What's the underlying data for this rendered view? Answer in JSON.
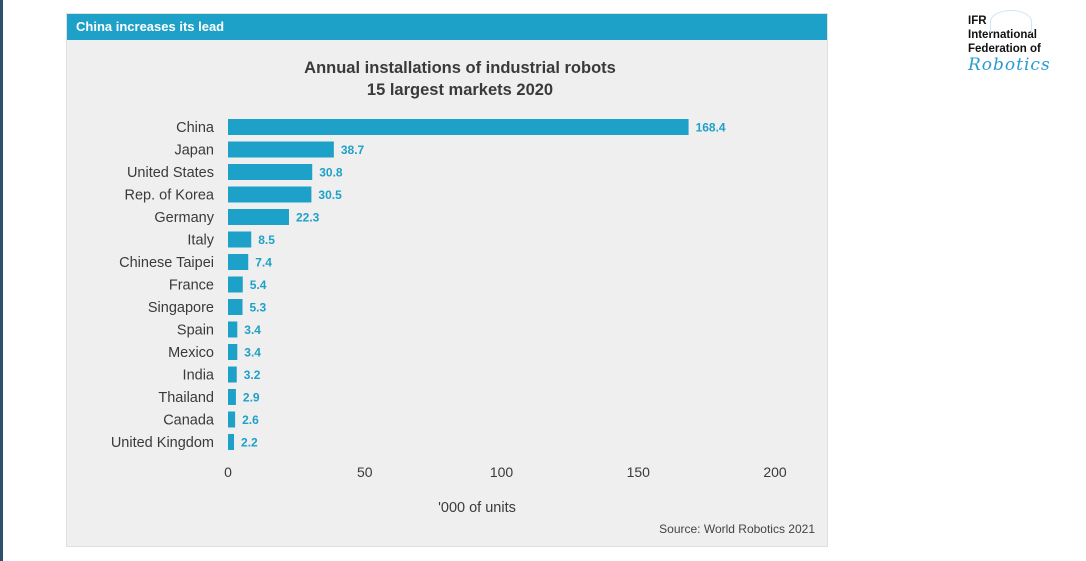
{
  "header": {
    "label": "China increases its lead"
  },
  "logo": {
    "lines": [
      "IFR",
      "International",
      "Federation of"
    ],
    "script": "Robotics"
  },
  "source": "Source: World Robotics 2021",
  "colors": {
    "bar": "#1ea1c8",
    "label": "#1ea1c8",
    "header": "#1ea1c8"
  },
  "chart_data": {
    "type": "bar",
    "orientation": "horizontal",
    "title": "Annual installations of industrial robots",
    "subtitle": "15 largest markets 2020",
    "xlabel": "'000 of units",
    "ylabel": "",
    "xlim": [
      0,
      200
    ],
    "xticks": [
      0,
      50,
      100,
      150,
      200
    ],
    "grid": false,
    "categories": [
      "China",
      "Japan",
      "United States",
      "Rep. of Korea",
      "Germany",
      "Italy",
      "Chinese Taipei",
      "France",
      "Singapore",
      "Spain",
      "Mexico",
      "India",
      "Thailand",
      "Canada",
      "United Kingdom"
    ],
    "values": [
      168.4,
      38.7,
      30.8,
      30.5,
      22.3,
      8.5,
      7.4,
      5.4,
      5.3,
      3.4,
      3.4,
      3.2,
      2.9,
      2.6,
      2.2
    ],
    "value_labels": [
      "168.4",
      "38.7",
      "30.8",
      "30.5",
      "22.3",
      "8.5",
      "7.4",
      "5.4",
      "5.3",
      "3.4",
      "3.4",
      "3.2",
      "2.9",
      "2.6",
      "2.2"
    ]
  }
}
